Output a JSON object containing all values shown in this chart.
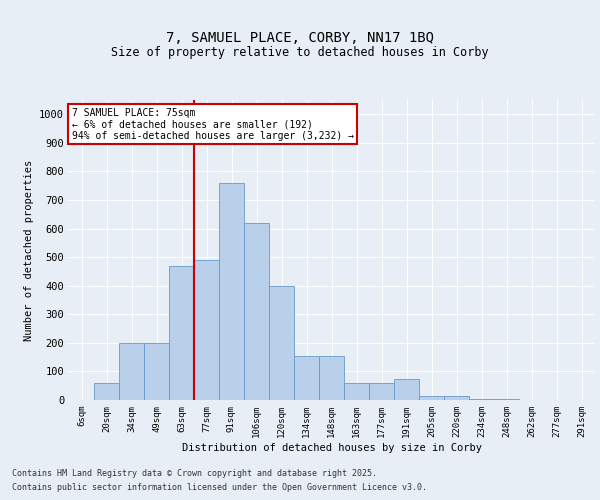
{
  "title_line1": "7, SAMUEL PLACE, CORBY, NN17 1BQ",
  "title_line2": "Size of property relative to detached houses in Corby",
  "xlabel": "Distribution of detached houses by size in Corby",
  "ylabel": "Number of detached properties",
  "categories": [
    "6sqm",
    "20sqm",
    "34sqm",
    "49sqm",
    "63sqm",
    "77sqm",
    "91sqm",
    "106sqm",
    "120sqm",
    "134sqm",
    "148sqm",
    "163sqm",
    "177sqm",
    "191sqm",
    "205sqm",
    "220sqm",
    "234sqm",
    "248sqm",
    "262sqm",
    "277sqm",
    "291sqm"
  ],
  "bar_values": [
    0,
    60,
    200,
    200,
    470,
    490,
    760,
    620,
    400,
    155,
    155,
    60,
    60,
    75,
    15,
    15,
    5,
    5,
    0,
    0,
    0
  ],
  "bar_color": "#b8d0ea",
  "bar_edge_color": "#6699cc",
  "vline_color": "#cc0000",
  "vline_x_index": 5,
  "annotation_text": "7 SAMUEL PLACE: 75sqm\n← 6% of detached houses are smaller (192)\n94% of semi-detached houses are larger (3,232) →",
  "annotation_box_facecolor": "#ffffff",
  "annotation_box_edgecolor": "#cc0000",
  "ylim": [
    0,
    1050
  ],
  "yticks": [
    0,
    100,
    200,
    300,
    400,
    500,
    600,
    700,
    800,
    900,
    1000
  ],
  "background_color": "#e8eef5",
  "plot_bg_color": "#e8eef5",
  "grid_color": "#ffffff",
  "footer_line1": "Contains HM Land Registry data © Crown copyright and database right 2025.",
  "footer_line2": "Contains public sector information licensed under the Open Government Licence v3.0."
}
